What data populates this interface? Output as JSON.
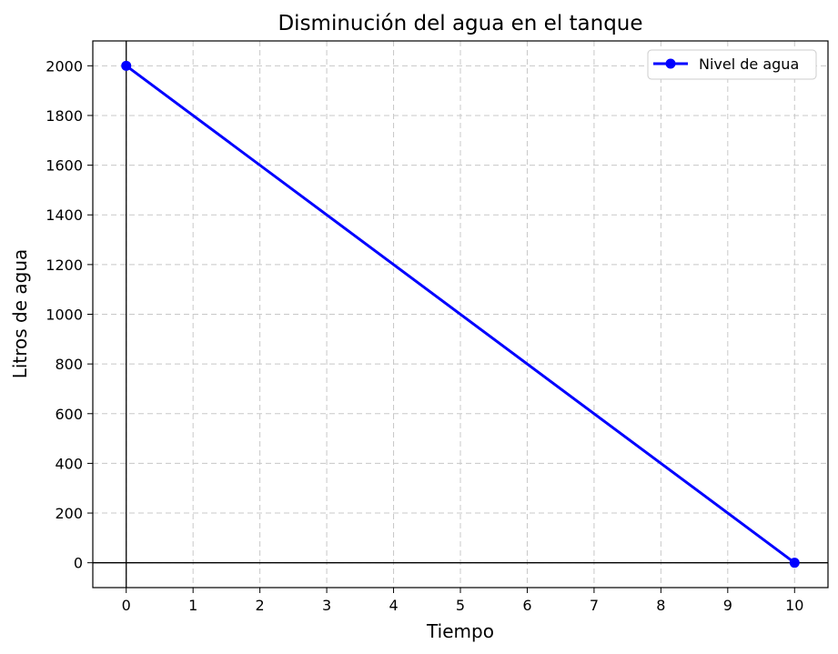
{
  "chart_data": {
    "type": "line",
    "title": "Disminución del agua en el tanque",
    "xlabel": "Tiempo",
    "ylabel": "Litros de agua",
    "xlim": [
      -0.5,
      10.5
    ],
    "ylim": [
      -100,
      2100
    ],
    "x_ticks": [
      0,
      1,
      2,
      3,
      4,
      5,
      6,
      7,
      8,
      9,
      10
    ],
    "y_ticks": [
      0,
      200,
      400,
      600,
      800,
      1000,
      1200,
      1400,
      1600,
      1800,
      2000
    ],
    "grid": true,
    "grid_style": "dashed",
    "reference_lines": {
      "x": 0,
      "y": 0
    },
    "legend_position": "top-right",
    "series": [
      {
        "name": "Nivel de agua",
        "color": "#0000ff",
        "marker": "circle",
        "x": [
          0,
          10
        ],
        "y": [
          2000,
          0
        ]
      }
    ]
  }
}
